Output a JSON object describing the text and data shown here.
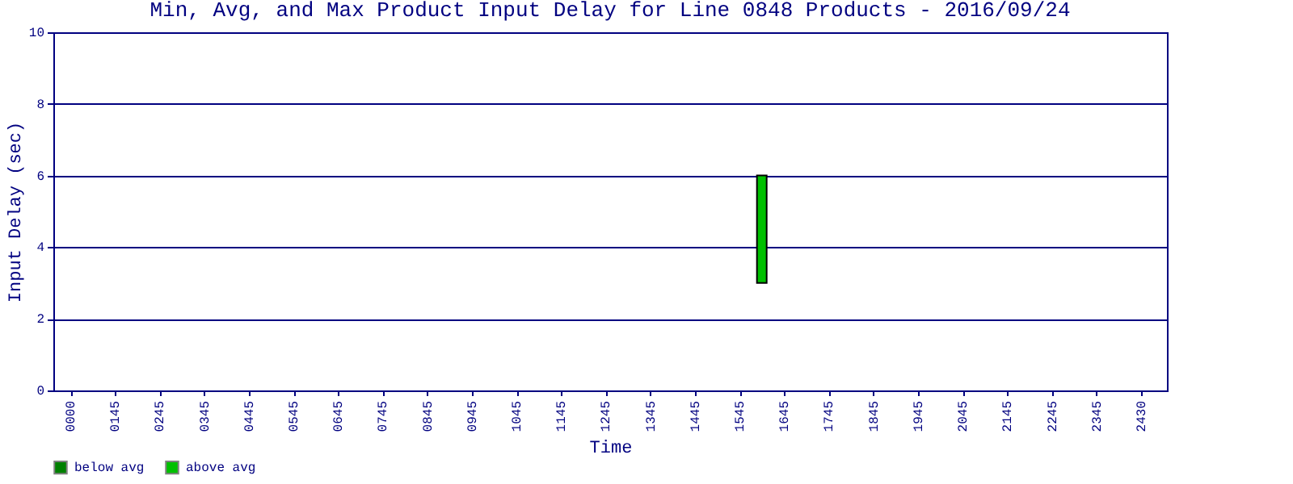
{
  "chart_data": {
    "type": "bar",
    "title": "Min, Avg, and Max Product Input Delay for Line 0848 Products - 2016/09/24",
    "xlabel": "Time",
    "ylabel": "Input Delay (sec)",
    "categories": [
      "0000",
      null,
      "0145",
      null,
      "0245",
      null,
      "0345",
      null,
      "0445",
      null,
      "0545",
      null,
      "0645",
      null,
      "0745",
      null,
      "0845",
      null,
      "0945",
      null,
      "1045",
      null,
      "1145",
      null,
      "1245",
      null,
      "1345",
      null,
      "1445",
      null,
      "1545",
      null,
      "1645",
      null,
      "1745",
      null,
      "1845",
      null,
      "1945",
      null,
      "2045",
      null,
      "2145",
      null,
      "2245",
      null,
      "2345",
      null,
      "2430"
    ],
    "series": [
      {
        "name": "below avg",
        "color": "#008000",
        "values": [
          null,
          null,
          null,
          null,
          null,
          null,
          null,
          null,
          null,
          null,
          null,
          null,
          null,
          null,
          null,
          null,
          null,
          null,
          null,
          null,
          null,
          null,
          null,
          null,
          null,
          null,
          null,
          null,
          null,
          null,
          null,
          null,
          null,
          null,
          null,
          null,
          null,
          null,
          null,
          null,
          null,
          null,
          null,
          null,
          null,
          null,
          null,
          null,
          null
        ]
      },
      {
        "name": "above avg",
        "color": "#00c000",
        "base": [
          null,
          null,
          null,
          null,
          null,
          null,
          null,
          null,
          null,
          null,
          null,
          null,
          null,
          null,
          null,
          null,
          null,
          null,
          null,
          null,
          null,
          null,
          null,
          null,
          null,
          null,
          null,
          null,
          null,
          null,
          null,
          3,
          null,
          null,
          null,
          null,
          null,
          null,
          null,
          null,
          null,
          null,
          null,
          null,
          null,
          null,
          null,
          null,
          null
        ],
        "values": [
          null,
          null,
          null,
          null,
          null,
          null,
          null,
          null,
          null,
          null,
          null,
          null,
          null,
          null,
          null,
          null,
          null,
          null,
          null,
          null,
          null,
          null,
          null,
          null,
          null,
          null,
          null,
          null,
          null,
          null,
          null,
          3,
          null,
          null,
          null,
          null,
          null,
          null,
          null,
          null,
          null,
          null,
          null,
          null,
          null,
          null,
          null,
          null,
          null
        ]
      }
    ],
    "ylim": [
      0,
      10
    ],
    "yticks": [
      0,
      2,
      4,
      6,
      8,
      10
    ],
    "grid": "y",
    "legend": "bottom"
  }
}
